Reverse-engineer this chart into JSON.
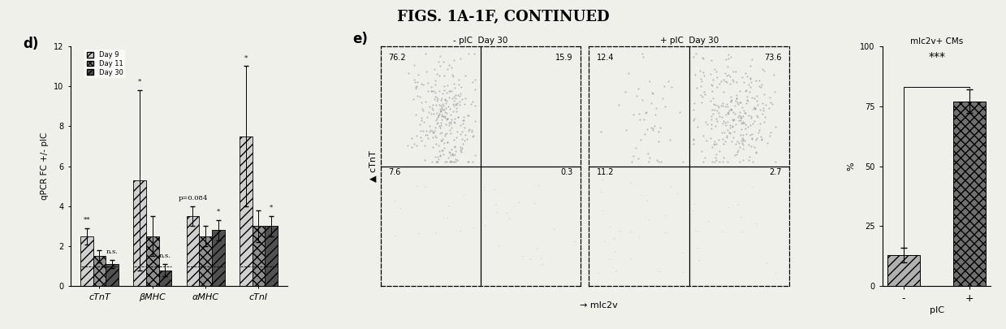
{
  "title": "FIGS. 1A-1F, CONTINUED",
  "title_fontsize": 13,
  "title_fontweight": "bold",
  "panel_d": {
    "label": "d)",
    "ylabel": "qPCR FC +/- pIC",
    "ylim": [
      0,
      12
    ],
    "yticks": [
      0,
      2,
      4,
      6,
      8,
      10,
      12
    ],
    "groups": [
      "cTnT",
      "βMHC",
      "αMHC",
      "cTnI"
    ],
    "legend_labels": [
      "Day 9",
      "Day 11",
      "Day 30"
    ],
    "bar_values": {
      "Day9": [
        2.5,
        5.3,
        3.5,
        7.5
      ],
      "Day11": [
        1.5,
        2.5,
        2.5,
        3.0
      ],
      "Day30": [
        1.1,
        0.8,
        2.8,
        3.0
      ]
    },
    "bar_errors": {
      "Day9": [
        0.4,
        4.5,
        0.5,
        3.5
      ],
      "Day11": [
        0.3,
        1.0,
        0.5,
        0.8
      ],
      "Day30": [
        0.2,
        0.3,
        0.5,
        0.5
      ]
    },
    "hatch_day9": "///",
    "hatch_day11": "xxx",
    "hatch_day30": "///",
    "colors": [
      "#d0d0d0",
      "#909090",
      "#505050"
    ]
  },
  "panel_e": {
    "label": "e)",
    "neg_title": "- pIC  Day 30",
    "pos_title": "+ pIC  Day 30",
    "xlabel": "→ mlc2v",
    "ylabel": "▲ cTnT",
    "neg_quadrants": {
      "UL": "76.2",
      "UR": "15.9",
      "LL": "7.6",
      "LR": "0.3"
    },
    "pos_quadrants": {
      "UL": "12.4",
      "UR": "73.6",
      "LL": "11.2",
      "LR": "2.7"
    }
  },
  "panel_bar": {
    "title": "mlc2v+ CMs",
    "ylabel": "%",
    "ylim": [
      0,
      100
    ],
    "yticks": [
      0,
      25,
      50,
      75,
      100
    ],
    "xlabel": "pIC",
    "groups": [
      "-",
      "+"
    ],
    "values": [
      13,
      77
    ],
    "errors": [
      3,
      5
    ],
    "significance": "***",
    "hatch_neg": "///",
    "hatch_pos": "xxx",
    "color_neg": "#b0b0b0",
    "color_pos": "#707070"
  },
  "bg_color": "#f0f0ea",
  "dot_color": "#888888"
}
